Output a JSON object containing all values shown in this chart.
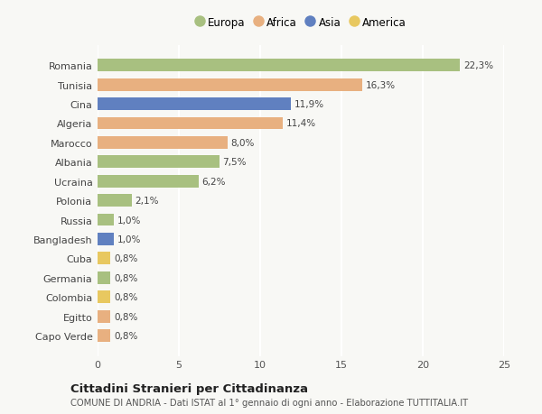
{
  "countries": [
    "Romania",
    "Tunisia",
    "Cina",
    "Algeria",
    "Marocco",
    "Albania",
    "Ucraina",
    "Polonia",
    "Russia",
    "Bangladesh",
    "Cuba",
    "Germania",
    "Colombia",
    "Egitto",
    "Capo Verde"
  ],
  "values": [
    22.3,
    16.3,
    11.9,
    11.4,
    8.0,
    7.5,
    6.2,
    2.1,
    1.0,
    1.0,
    0.8,
    0.8,
    0.8,
    0.8,
    0.8
  ],
  "labels": [
    "22,3%",
    "16,3%",
    "11,9%",
    "11,4%",
    "8,0%",
    "7,5%",
    "6,2%",
    "2,1%",
    "1,0%",
    "1,0%",
    "0,8%",
    "0,8%",
    "0,8%",
    "0,8%",
    "0,8%"
  ],
  "continents": [
    "Europa",
    "Africa",
    "Asia",
    "Africa",
    "Africa",
    "Europa",
    "Europa",
    "Europa",
    "Europa",
    "Asia",
    "America",
    "Europa",
    "America",
    "Africa",
    "Africa"
  ],
  "continent_colors": {
    "Europa": "#a8c080",
    "Africa": "#e8b080",
    "Asia": "#6080c0",
    "America": "#e8c860"
  },
  "legend_order": [
    "Europa",
    "Africa",
    "Asia",
    "America"
  ],
  "title": "Cittadini Stranieri per Cittadinanza",
  "subtitle": "COMUNE DI ANDRIA - Dati ISTAT al 1° gennaio di ogni anno - Elaborazione TUTTITALIA.IT",
  "xlim": [
    0,
    25
  ],
  "xticks": [
    0,
    5,
    10,
    15,
    20,
    25
  ],
  "background_color": "#f8f8f5",
  "grid_color": "#ffffff",
  "bar_height": 0.65,
  "label_fontsize": 7.5,
  "ytick_fontsize": 8,
  "xtick_fontsize": 8
}
